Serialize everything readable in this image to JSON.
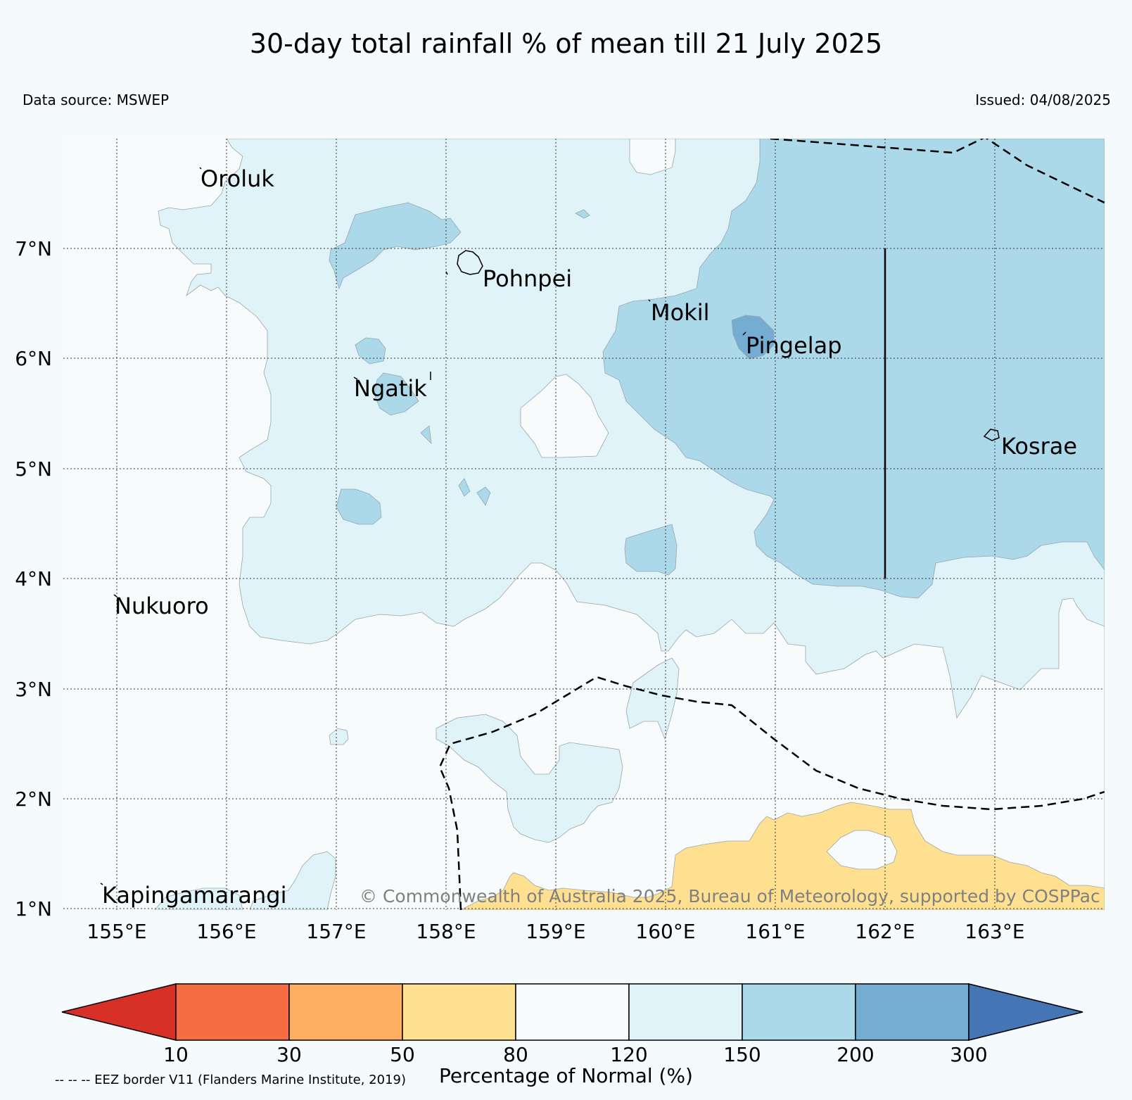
{
  "title": "30-day total rainfall % of mean till 21 July 2025",
  "data_source": "Data source: MSWEP",
  "issued": "Issued: 04/08/2025",
  "copyright": "© Commonwealth of Australia 2025, Bureau of Meteorology, supported by COSPPac",
  "eez_note": "-- -- -- EEZ border V11 (Flanders Marine Institute, 2019)",
  "map": {
    "lon_range": [
      154.5,
      164.0
    ],
    "lat_range": [
      1.0,
      8.0
    ],
    "grid": true,
    "lat_labels": [
      "7°N",
      "6°N",
      "5°N",
      "4°N",
      "3°N",
      "2°N",
      "1°N"
    ],
    "lon_labels": [
      "155°E",
      "156°E",
      "157°E",
      "158°E",
      "159°E",
      "160°E",
      "161°E",
      "162°E",
      "163°E"
    ],
    "places": [
      "Oroluk",
      "Pohnpei",
      "Mokil",
      "Pingelap",
      "Ngatik",
      "Kosrae",
      "Nukuoro",
      "Kapingamarangi"
    ],
    "background_class": "80-120"
  },
  "colorbar": {
    "title": "Percentage of Normal (%)",
    "ticks": [
      "10",
      "30",
      "50",
      "80",
      "120",
      "150",
      "200",
      "300"
    ],
    "classes": [
      {
        "range": "<10",
        "color": "#d73027"
      },
      {
        "range": "10-30",
        "color": "#f46d43"
      },
      {
        "range": "30-50",
        "color": "#fdae61"
      },
      {
        "range": "50-80",
        "color": "#fee090"
      },
      {
        "range": "80-120",
        "color": "#f7fbfc"
      },
      {
        "range": "120-150",
        "color": "#e0f3f8"
      },
      {
        "range": "150-200",
        "color": "#abd9e9"
      },
      {
        "range": "200-300",
        "color": "#74add1"
      },
      {
        "range": ">300",
        "color": "#4575b4"
      }
    ]
  }
}
